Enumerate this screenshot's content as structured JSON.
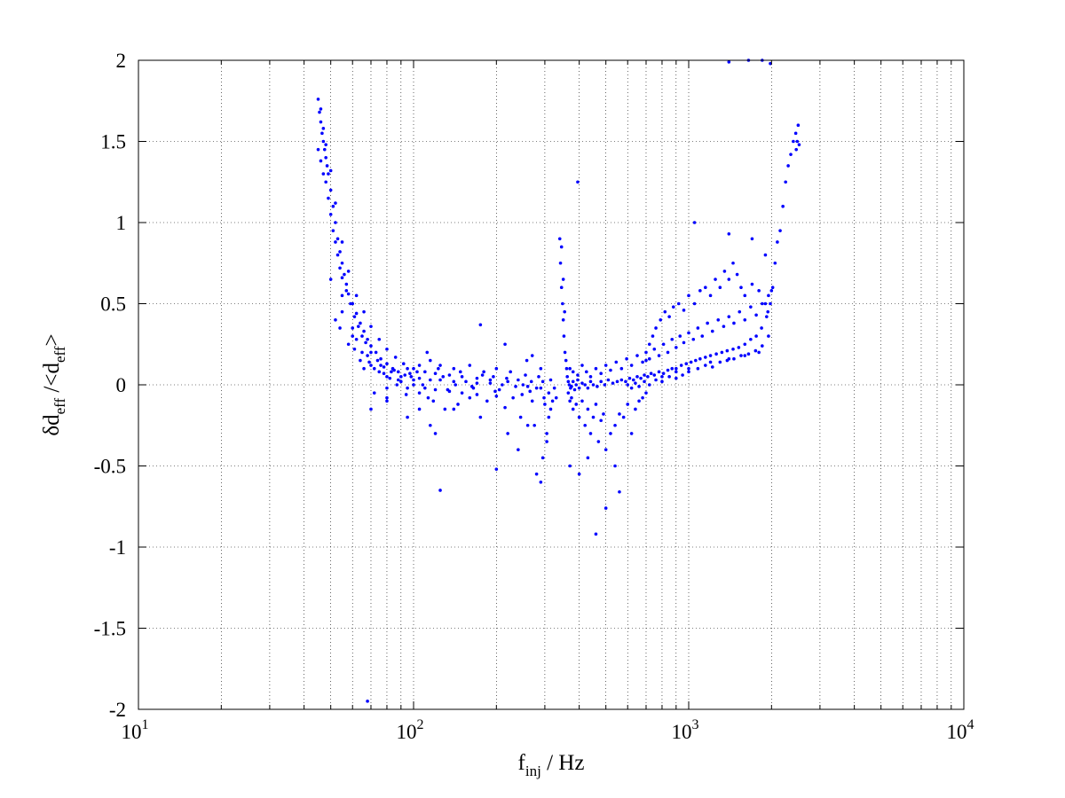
{
  "chart_data": {
    "type": "scatter",
    "x_scale": "log",
    "xlim": [
      10,
      10000
    ],
    "ylim": [
      -2,
      2
    ],
    "grid": true,
    "marker_color": "#0000ff",
    "x_ticks": [
      {
        "base": "10",
        "exp": "1",
        "value": 10
      },
      {
        "base": "10",
        "exp": "2",
        "value": 100
      },
      {
        "base": "10",
        "exp": "3",
        "value": 1000
      },
      {
        "base": "10",
        "exp": "4",
        "value": 10000
      }
    ],
    "y_ticks": [
      {
        "label": "2",
        "value": 2
      },
      {
        "label": "1.5",
        "value": 1.5
      },
      {
        "label": "1",
        "value": 1
      },
      {
        "label": "0.5",
        "value": 0.5
      },
      {
        "label": "0",
        "value": 0
      },
      {
        "label": "-0.5",
        "value": -0.5
      },
      {
        "label": "-1",
        "value": -1
      },
      {
        "label": "-1.5",
        "value": -1.5
      },
      {
        "label": "-2",
        "value": -2
      }
    ],
    "xlabel": {
      "main": "f",
      "sub": "inj",
      "rest": " / Hz"
    },
    "ylabel": {
      "p1": "δd",
      "sub1": "eff",
      "p2": " /<d",
      "sub2": "eff",
      "p3": ">"
    },
    "points": [
      [
        45,
        1.76
      ],
      [
        45.5,
        1.68
      ],
      [
        46,
        1.62
      ],
      [
        46.5,
        1.55
      ],
      [
        47,
        1.5
      ],
      [
        47.5,
        1.45
      ],
      [
        48,
        1.4
      ],
      [
        48.5,
        1.35
      ],
      [
        49,
        1.3
      ],
      [
        50,
        1.2
      ],
      [
        51,
        1.1
      ],
      [
        52,
        1.0
      ],
      [
        53,
        0.9
      ],
      [
        54,
        0.82
      ],
      [
        55,
        0.75
      ],
      [
        56,
        0.68
      ],
      [
        57,
        0.62
      ],
      [
        58,
        0.56
      ],
      [
        60,
        0.5
      ],
      [
        62,
        0.44
      ],
      [
        64,
        0.38
      ],
      [
        66,
        0.33
      ],
      [
        68,
        0.28
      ],
      [
        70,
        0.24
      ],
      [
        73,
        0.2
      ],
      [
        76,
        0.16
      ],
      [
        80,
        0.13
      ],
      [
        84,
        0.1
      ],
      [
        88,
        0.08
      ],
      [
        93,
        0.06
      ],
      [
        98,
        0.05
      ],
      [
        105,
        0.04
      ],
      [
        115,
        0.03
      ],
      [
        125,
        0.03
      ],
      [
        140,
        0.02
      ],
      [
        155,
        0.02
      ],
      [
        170,
        0.01
      ],
      [
        190,
        0.01
      ],
      [
        210,
        0.0
      ],
      [
        235,
        -0.01
      ],
      [
        260,
        -0.01
      ],
      [
        290,
        -0.02
      ],
      [
        310,
        -0.05
      ],
      [
        320,
        -0.1
      ],
      [
        330,
        -0.08
      ],
      [
        45,
        1.45
      ],
      [
        46,
        1.38
      ],
      [
        47,
        1.3
      ],
      [
        48,
        1.25
      ],
      [
        49,
        1.15
      ],
      [
        50,
        1.05
      ],
      [
        51,
        0.95
      ],
      [
        52,
        0.88
      ],
      [
        53,
        0.8
      ],
      [
        54,
        0.72
      ],
      [
        55,
        0.66
      ],
      [
        57,
        0.58
      ],
      [
        59,
        0.5
      ],
      [
        61,
        0.42
      ],
      [
        63,
        0.36
      ],
      [
        65,
        0.3
      ],
      [
        67,
        0.26
      ],
      [
        70,
        0.2
      ],
      [
        74,
        0.15
      ],
      [
        78,
        0.11
      ],
      [
        83,
        0.08
      ],
      [
        90,
        0.05
      ],
      [
        100,
        0.03
      ],
      [
        46,
        1.7
      ],
      [
        47,
        1.58
      ],
      [
        48,
        1.48
      ],
      [
        50,
        1.32
      ],
      [
        52,
        1.12
      ],
      [
        55,
        0.88
      ],
      [
        58,
        0.7
      ],
      [
        62,
        0.55
      ],
      [
        66,
        0.45
      ],
      [
        70,
        0.36
      ],
      [
        75,
        0.28
      ],
      [
        80,
        0.22
      ],
      [
        86,
        0.17
      ],
      [
        92,
        0.13
      ],
      [
        100,
        0.1
      ],
      [
        110,
        0.08
      ],
      [
        120,
        0.07
      ],
      [
        135,
        0.06
      ],
      [
        150,
        0.05
      ],
      [
        170,
        0.04
      ],
      [
        190,
        0.03
      ],
      [
        220,
        0.02
      ],
      [
        250,
        0.0
      ],
      [
        280,
        -0.02
      ],
      [
        55,
        0.55
      ],
      [
        60,
        0.35
      ],
      [
        65,
        0.2
      ],
      [
        70,
        0.12
      ],
      [
        75,
        0.08
      ],
      [
        80,
        0.05
      ],
      [
        90,
        0.02
      ],
      [
        100,
        0.0
      ],
      [
        110,
        -0.02
      ],
      [
        120,
        -0.03
      ],
      [
        135,
        -0.04
      ],
      [
        150,
        -0.05
      ],
      [
        170,
        -0.06
      ],
      [
        200,
        -0.07
      ],
      [
        230,
        -0.08
      ],
      [
        270,
        -0.1
      ],
      [
        300,
        -0.12
      ],
      [
        52,
        0.4
      ],
      [
        58,
        0.25
      ],
      [
        64,
        0.15
      ],
      [
        72,
        0.1
      ],
      [
        82,
        0.04
      ],
      [
        95,
        -0.02
      ],
      [
        105,
        -0.05
      ],
      [
        118,
        -0.1
      ],
      [
        130,
        -0.15
      ],
      [
        145,
        -0.12
      ],
      [
        160,
        -0.08
      ],
      [
        185,
        -0.1
      ],
      [
        215,
        -0.14
      ],
      [
        245,
        -0.2
      ],
      [
        275,
        -0.25
      ],
      [
        305,
        -0.3
      ],
      [
        50,
        0.65
      ],
      [
        55,
        0.45
      ],
      [
        62,
        0.28
      ],
      [
        68,
        0.18
      ],
      [
        76,
        0.12
      ],
      [
        85,
        0.09
      ],
      [
        95,
        0.1
      ],
      [
        105,
        0.12
      ],
      [
        115,
        0.15
      ],
      [
        125,
        0.12
      ],
      [
        140,
        0.1
      ],
      [
        160,
        0.12
      ],
      [
        180,
        0.08
      ],
      [
        200,
        0.1
      ],
      [
        225,
        0.08
      ],
      [
        255,
        0.06
      ],
      [
        285,
        0.05
      ],
      [
        315,
        0.03
      ],
      [
        54,
        0.35
      ],
      [
        61,
        0.22
      ],
      [
        69,
        0.14
      ],
      [
        78,
        0.07
      ],
      [
        88,
        0.03
      ],
      [
        97,
        0.07
      ],
      [
        108,
        0.0
      ],
      [
        112,
        0.2
      ],
      [
        128,
        0.05
      ],
      [
        142,
        0.0
      ],
      [
        165,
        -0.02
      ],
      [
        195,
        0.05
      ],
      [
        205,
        -0.03
      ],
      [
        240,
        0.03
      ],
      [
        265,
        -0.04
      ],
      [
        295,
        0.02
      ],
      [
        325,
        -0.02
      ],
      [
        60,
        0.3
      ],
      [
        66,
        0.1
      ],
      [
        72,
        -0.05
      ],
      [
        80,
        -0.08
      ],
      [
        87,
        0.0
      ],
      [
        94,
        -0.06
      ],
      [
        103,
        0.08
      ],
      [
        113,
        -0.08
      ],
      [
        123,
        0.1
      ],
      [
        133,
        -0.03
      ],
      [
        148,
        0.08
      ],
      [
        163,
        -0.01
      ],
      [
        178,
        0.06
      ],
      [
        198,
        -0.04
      ],
      [
        218,
        0.04
      ],
      [
        248,
        -0.06
      ],
      [
        268,
        0.02
      ],
      [
        298,
        -0.08
      ],
      [
        70,
        -0.15
      ],
      [
        80,
        -0.1
      ],
      [
        95,
        -0.2
      ],
      [
        105,
        -0.15
      ],
      [
        115,
        -0.25
      ],
      [
        120,
        -0.3
      ],
      [
        125,
        -0.65
      ],
      [
        140,
        -0.15
      ],
      [
        175,
        -0.2
      ],
      [
        200,
        -0.52
      ],
      [
        220,
        -0.3
      ],
      [
        240,
        -0.4
      ],
      [
        260,
        -0.25
      ],
      [
        280,
        -0.55
      ],
      [
        290,
        -0.6
      ],
      [
        295,
        -0.45
      ],
      [
        305,
        -0.35
      ],
      [
        310,
        -0.2
      ],
      [
        315,
        -0.15
      ],
      [
        175,
        0.37
      ],
      [
        215,
        0.25
      ],
      [
        258,
        0.15
      ],
      [
        270,
        0.18
      ],
      [
        290,
        0.1
      ],
      [
        68,
        -1.95
      ],
      [
        80,
        -0.02
      ],
      [
        340,
        0.9
      ],
      [
        342,
        0.75
      ],
      [
        345,
        0.6
      ],
      [
        348,
        0.5
      ],
      [
        350,
        0.4
      ],
      [
        352,
        0.3
      ],
      [
        355,
        0.2
      ],
      [
        358,
        0.15
      ],
      [
        345,
        0.85
      ],
      [
        350,
        0.65
      ],
      [
        354,
        0.45
      ],
      [
        360,
        0.1
      ],
      [
        362,
        0.05
      ],
      [
        365,
        0.02
      ],
      [
        368,
        0.0
      ],
      [
        372,
        -0.02
      ],
      [
        375,
        -0.01
      ],
      [
        380,
        0.02
      ],
      [
        385,
        -0.03
      ],
      [
        390,
        0.0
      ],
      [
        395,
        0.03
      ],
      [
        400,
        -0.02
      ],
      [
        410,
        0.01
      ],
      [
        420,
        0.0
      ],
      [
        430,
        -0.02
      ],
      [
        440,
        0.02
      ],
      [
        450,
        0.0
      ],
      [
        465,
        -0.01
      ],
      [
        480,
        0.02
      ],
      [
        495,
        0.0
      ],
      [
        510,
        0.03
      ],
      [
        530,
        0.01
      ],
      [
        550,
        0.02
      ],
      [
        570,
        0.03
      ],
      [
        590,
        0.02
      ],
      [
        610,
        0.04
      ],
      [
        630,
        0.03
      ],
      [
        650,
        0.05
      ],
      [
        670,
        0.04
      ],
      [
        690,
        0.06
      ],
      [
        710,
        0.05
      ],
      [
        730,
        0.07
      ],
      [
        750,
        0.06
      ],
      [
        780,
        0.08
      ],
      [
        810,
        0.07
      ],
      [
        840,
        0.09
      ],
      [
        870,
        0.1
      ],
      [
        900,
        0.1
      ],
      [
        940,
        0.12
      ],
      [
        980,
        0.13
      ],
      [
        1020,
        0.14
      ],
      [
        1060,
        0.15
      ],
      [
        1100,
        0.16
      ],
      [
        1150,
        0.17
      ],
      [
        1200,
        0.18
      ],
      [
        1260,
        0.19
      ],
      [
        1320,
        0.2
      ],
      [
        1380,
        0.21
      ],
      [
        1450,
        0.22
      ],
      [
        1520,
        0.23
      ],
      [
        1600,
        0.25
      ],
      [
        1680,
        0.28
      ],
      [
        1760,
        0.3
      ],
      [
        1840,
        0.35
      ],
      [
        1920,
        0.42
      ],
      [
        1980,
        0.5
      ],
      [
        2020,
        0.6
      ],
      [
        2060,
        0.75
      ],
      [
        2100,
        0.88
      ],
      [
        2150,
        0.95
      ],
      [
        2200,
        1.1
      ],
      [
        2250,
        1.25
      ],
      [
        2300,
        1.35
      ],
      [
        2350,
        1.42
      ],
      [
        2400,
        1.5
      ],
      [
        2450,
        1.55
      ],
      [
        2500,
        1.6
      ],
      [
        2480,
        1.5
      ],
      [
        2520,
        1.48
      ],
      [
        2460,
        1.45
      ],
      [
        365,
        -0.05
      ],
      [
        370,
        -0.1
      ],
      [
        375,
        -0.08
      ],
      [
        380,
        -0.15
      ],
      [
        390,
        -0.12
      ],
      [
        400,
        -0.2
      ],
      [
        410,
        -0.1
      ],
      [
        420,
        -0.25
      ],
      [
        430,
        -0.15
      ],
      [
        440,
        -0.3
      ],
      [
        450,
        -0.2
      ],
      [
        460,
        -0.12
      ],
      [
        470,
        -0.35
      ],
      [
        480,
        -0.22
      ],
      [
        490,
        -0.18
      ],
      [
        500,
        -0.4
      ],
      [
        520,
        -0.3
      ],
      [
        540,
        -0.25
      ],
      [
        560,
        -0.18
      ],
      [
        580,
        -0.2
      ],
      [
        600,
        -0.12
      ],
      [
        620,
        -0.3
      ],
      [
        640,
        -0.15
      ],
      [
        660,
        -0.1
      ],
      [
        680,
        -0.08
      ],
      [
        700,
        -0.05
      ],
      [
        370,
        -0.5
      ],
      [
        400,
        -0.55
      ],
      [
        430,
        -0.45
      ],
      [
        460,
        -0.92
      ],
      [
        500,
        -0.76
      ],
      [
        540,
        -0.5
      ],
      [
        560,
        -0.66
      ],
      [
        395,
        1.25
      ],
      [
        370,
        0.1
      ],
      [
        380,
        0.08
      ],
      [
        395,
        0.06
      ],
      [
        410,
        0.12
      ],
      [
        425,
        0.08
      ],
      [
        440,
        0.05
      ],
      [
        460,
        0.1
      ],
      [
        480,
        0.07
      ],
      [
        500,
        0.12
      ],
      [
        520,
        0.09
      ],
      [
        545,
        0.14
      ],
      [
        570,
        0.1
      ],
      [
        595,
        0.16
      ],
      [
        620,
        0.12
      ],
      [
        650,
        0.18
      ],
      [
        680,
        0.14
      ],
      [
        700,
        0.2
      ],
      [
        720,
        0.16
      ],
      [
        750,
        0.22
      ],
      [
        780,
        0.18
      ],
      [
        810,
        0.25
      ],
      [
        840,
        0.2
      ],
      [
        870,
        0.28
      ],
      [
        900,
        0.23
      ],
      [
        930,
        0.3
      ],
      [
        960,
        0.26
      ],
      [
        1000,
        0.32
      ],
      [
        1040,
        0.28
      ],
      [
        1080,
        0.35
      ],
      [
        1120,
        0.3
      ],
      [
        1170,
        0.38
      ],
      [
        1220,
        0.33
      ],
      [
        1280,
        0.4
      ],
      [
        1340,
        0.36
      ],
      [
        1400,
        0.42
      ],
      [
        1460,
        0.38
      ],
      [
        1530,
        0.45
      ],
      [
        1600,
        0.4
      ],
      [
        1680,
        0.48
      ],
      [
        1760,
        0.43
      ],
      [
        1850,
        0.5
      ],
      [
        1940,
        0.45
      ],
      [
        700,
        0.15
      ],
      [
        720,
        0.25
      ],
      [
        740,
        0.3
      ],
      [
        760,
        0.35
      ],
      [
        790,
        0.4
      ],
      [
        820,
        0.45
      ],
      [
        850,
        0.42
      ],
      [
        880,
        0.48
      ],
      [
        920,
        0.5
      ],
      [
        960,
        0.46
      ],
      [
        1000,
        0.55
      ],
      [
        1050,
        0.5
      ],
      [
        1100,
        0.58
      ],
      [
        1150,
        0.6
      ],
      [
        1200,
        0.55
      ],
      [
        1250,
        0.65
      ],
      [
        1300,
        0.6
      ],
      [
        1350,
        0.7
      ],
      [
        1400,
        0.65
      ],
      [
        1450,
        0.75
      ],
      [
        1500,
        0.68
      ],
      [
        1550,
        0.6
      ],
      [
        1600,
        0.55
      ],
      [
        1700,
        0.62
      ],
      [
        1800,
        0.58
      ],
      [
        1900,
        0.5
      ],
      [
        1950,
        0.55
      ],
      [
        1050,
        1.0
      ],
      [
        1400,
        1.99
      ],
      [
        1650,
        2.0
      ],
      [
        1850,
        2.0
      ],
      [
        1980,
        1.98
      ],
      [
        1400,
        0.93
      ],
      [
        1700,
        0.9
      ],
      [
        1900,
        0.8
      ],
      [
        2000,
        0.58
      ],
      [
        1800,
        0.2
      ],
      [
        1600,
        0.18
      ],
      [
        1400,
        0.16
      ],
      [
        1200,
        0.14
      ],
      [
        1000,
        0.1
      ],
      [
        900,
        0.08
      ],
      [
        800,
        0.05
      ],
      [
        600,
        0.0
      ],
      [
        620,
        -0.02
      ],
      [
        640,
        0.01
      ],
      [
        660,
        -0.01
      ],
      [
        690,
        0.02
      ],
      [
        720,
        0.0
      ],
      [
        760,
        0.03
      ],
      [
        800,
        0.02
      ],
      [
        850,
        0.05
      ],
      [
        900,
        0.04
      ],
      [
        950,
        0.06
      ],
      [
        1000,
        0.08
      ],
      [
        1080,
        0.1
      ],
      [
        1150,
        0.12
      ],
      [
        1220,
        0.11
      ],
      [
        1300,
        0.14
      ],
      [
        1380,
        0.15
      ],
      [
        1460,
        0.16
      ],
      [
        1550,
        0.18
      ],
      [
        1650,
        0.19
      ],
      [
        1750,
        0.21
      ],
      [
        1850,
        0.24
      ],
      [
        1950,
        0.3
      ]
    ]
  }
}
